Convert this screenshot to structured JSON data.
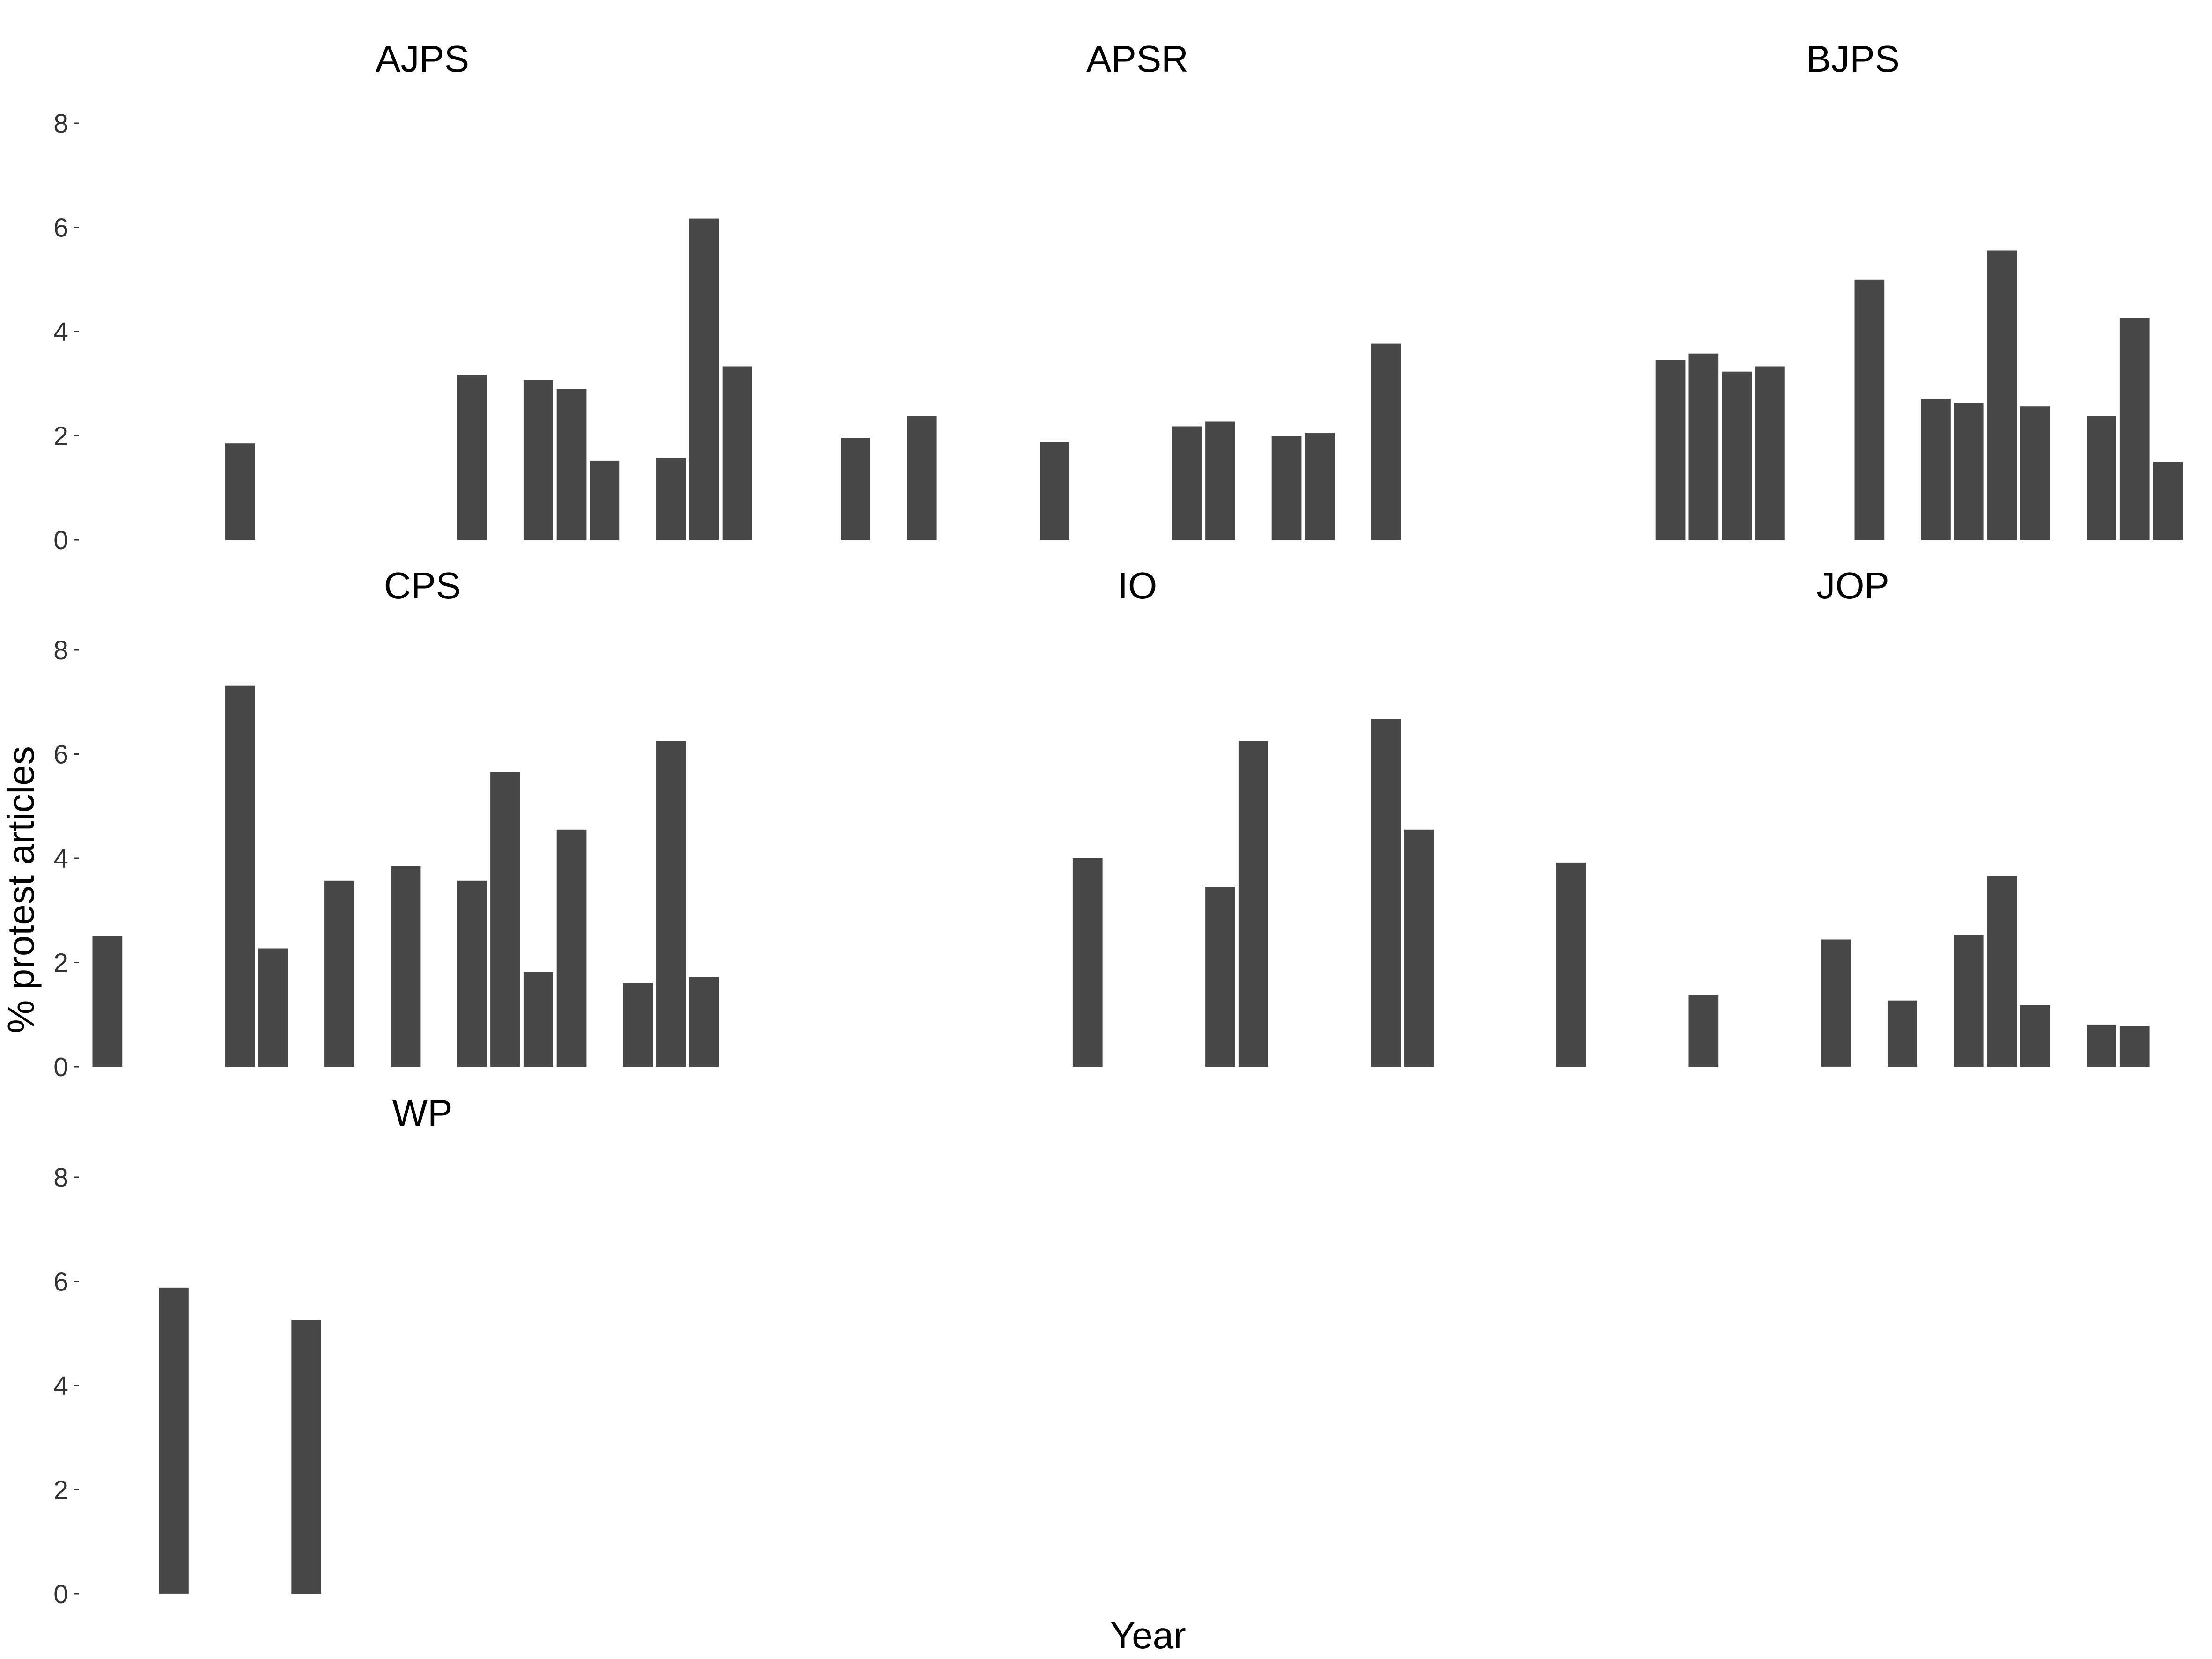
{
  "chart_data": {
    "type": "bar",
    "xlabel": "Year",
    "ylabel": "% protest articles",
    "ylim": [
      0,
      8
    ],
    "yticks": [
      0,
      2,
      4,
      6,
      8
    ],
    "bar_color": "#474747",
    "grid": false,
    "x_positions": 20,
    "panels": [
      {
        "title": "AJPS",
        "bars": [
          {
            "i": 4,
            "value": 1.85
          },
          {
            "i": 11,
            "value": 3.17
          },
          {
            "i": 13,
            "value": 3.07
          },
          {
            "i": 14,
            "value": 2.9
          },
          {
            "i": 15,
            "value": 1.52
          },
          {
            "i": 17,
            "value": 1.57
          },
          {
            "i": 18,
            "value": 6.17
          },
          {
            "i": 19,
            "value": 3.33
          }
        ]
      },
      {
        "title": "APSR",
        "bars": [
          {
            "i": 1,
            "value": 1.96
          },
          {
            "i": 3,
            "value": 2.38
          },
          {
            "i": 7,
            "value": 1.88
          },
          {
            "i": 11,
            "value": 2.18
          },
          {
            "i": 12,
            "value": 2.27
          },
          {
            "i": 14,
            "value": 1.99
          },
          {
            "i": 15,
            "value": 2.05
          },
          {
            "i": 17,
            "value": 3.77
          }
        ]
      },
      {
        "title": "BJPS",
        "bars": [
          {
            "i": 4,
            "value": 3.46
          },
          {
            "i": 5,
            "value": 3.58
          },
          {
            "i": 6,
            "value": 3.23
          },
          {
            "i": 7,
            "value": 3.33
          },
          {
            "i": 10,
            "value": 5.0
          },
          {
            "i": 12,
            "value": 2.7
          },
          {
            "i": 13,
            "value": 2.63
          },
          {
            "i": 14,
            "value": 5.56
          },
          {
            "i": 15,
            "value": 2.56
          },
          {
            "i": 17,
            "value": 2.38
          },
          {
            "i": 18,
            "value": 4.26
          },
          {
            "i": 19,
            "value": 1.5
          }
        ]
      },
      {
        "title": "CPS",
        "bars": [
          {
            "i": 0,
            "value": 2.5
          },
          {
            "i": 4,
            "value": 7.32
          },
          {
            "i": 5,
            "value": 2.27
          },
          {
            "i": 7,
            "value": 3.57
          },
          {
            "i": 9,
            "value": 3.85
          },
          {
            "i": 11,
            "value": 3.57
          },
          {
            "i": 12,
            "value": 5.66
          },
          {
            "i": 13,
            "value": 1.82
          },
          {
            "i": 14,
            "value": 4.55
          },
          {
            "i": 16,
            "value": 1.6
          },
          {
            "i": 17,
            "value": 6.25
          },
          {
            "i": 18,
            "value": 1.72
          }
        ]
      },
      {
        "title": "IO",
        "bars": [
          {
            "i": 8,
            "value": 4.0
          },
          {
            "i": 12,
            "value": 3.45
          },
          {
            "i": 13,
            "value": 6.25
          },
          {
            "i": 17,
            "value": 6.67
          },
          {
            "i": 18,
            "value": 4.55
          }
        ]
      },
      {
        "title": "JOP",
        "bars": [
          {
            "i": 1,
            "value": 3.92
          },
          {
            "i": 5,
            "value": 1.37
          },
          {
            "i": 9,
            "value": 2.44
          },
          {
            "i": 11,
            "value": 1.27
          },
          {
            "i": 13,
            "value": 2.53
          },
          {
            "i": 14,
            "value": 3.66
          },
          {
            "i": 15,
            "value": 1.18
          },
          {
            "i": 17,
            "value": 0.81
          },
          {
            "i": 18,
            "value": 0.78
          }
        ]
      },
      {
        "title": "WP",
        "bars": [
          {
            "i": 2,
            "value": 5.88
          },
          {
            "i": 6,
            "value": 5.26
          }
        ]
      }
    ]
  }
}
